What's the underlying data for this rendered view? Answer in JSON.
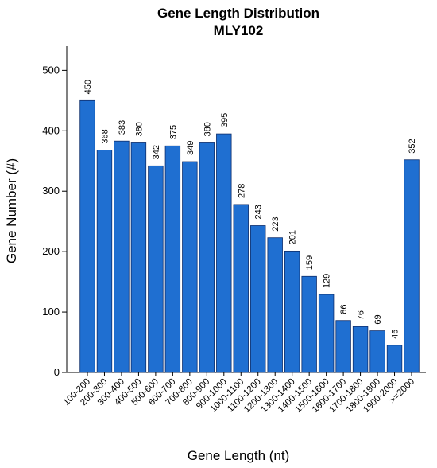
{
  "chart_data": {
    "type": "bar",
    "title": "Gene Length Distribution",
    "subtitle": "MLY102",
    "xlabel": "Gene Length (nt)",
    "ylabel": "Gene Number (#)",
    "ylim": [
      0,
      540
    ],
    "yticks": [
      0,
      100,
      200,
      300,
      400,
      500
    ],
    "grid": false,
    "bar_color": "#1f6fd1",
    "categories": [
      "100-200",
      "200-300",
      "300-400",
      "400-500",
      "500-600",
      "600-700",
      "700-800",
      "800-900",
      "900-1000",
      "1000-1100",
      "1100-1200",
      "1200-1300",
      "1300-1400",
      "1400-1500",
      "1500-1600",
      "1600-1700",
      "1700-1800",
      "1800-1900",
      "1900-2000",
      ">=2000"
    ],
    "values": [
      450,
      368,
      383,
      380,
      342,
      375,
      349,
      380,
      395,
      278,
      243,
      223,
      201,
      159,
      129,
      86,
      76,
      69,
      45,
      352
    ]
  }
}
